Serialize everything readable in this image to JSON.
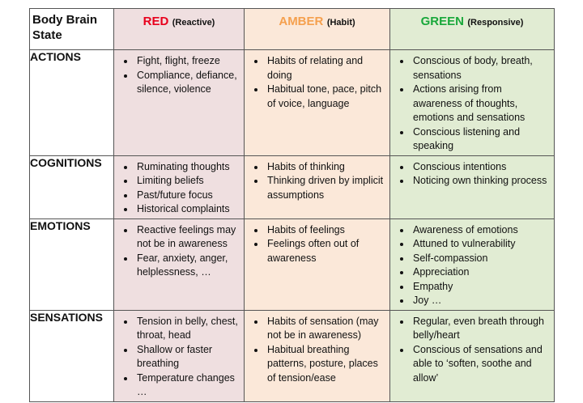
{
  "header": {
    "corner_label": "Body Brain State",
    "columns": [
      {
        "name": "RED",
        "sub": "(Reactive)",
        "color": "#e8001c"
      },
      {
        "name": "AMBER",
        "sub": "(Habit)",
        "color": "#f5a04e"
      },
      {
        "name": "GREEN",
        "sub": "(Responsive)",
        "color": "#19a83b"
      }
    ]
  },
  "rows": [
    {
      "label": "ACTIONS",
      "red": [
        "Fight, flight, freeze",
        "Compliance, defiance, silence, violence"
      ],
      "amber": [
        "Habits of relating and doing",
        "Habitual tone, pace, pitch of voice, language"
      ],
      "green": [
        "Conscious of body, breath, sensations",
        "Actions arising from awareness of thoughts, emotions and sensations",
        "Conscious listening and speaking"
      ]
    },
    {
      "label": "COGNITIONS",
      "red": [
        "Ruminating thoughts",
        "Limiting beliefs",
        "Past/future focus",
        "Historical complaints"
      ],
      "amber": [
        "Habits of thinking",
        "Thinking driven by implicit assumptions"
      ],
      "green": [
        "Conscious intentions",
        "Noticing own thinking process"
      ]
    },
    {
      "label": "EMOTIONS",
      "red": [
        "Reactive feelings may not be in awareness",
        "Fear, anxiety, anger, helplessness, …"
      ],
      "amber": [
        "Habits of feelings",
        "Feelings often out of awareness"
      ],
      "green": [
        "Awareness of emotions",
        "Attuned to vulnerability",
        "Self-compassion",
        "Appreciation",
        "Empathy",
        "Joy …"
      ]
    },
    {
      "label": "SENSATIONS",
      "red": [
        "Tension in belly, chest, throat, head",
        "Shallow or faster breathing",
        "Temperature changes …"
      ],
      "amber": [
        "Habits of sensation (may not be in awareness)",
        "Habitual breathing patterns, posture, places of tension/ease"
      ],
      "green": [
        "Regular, even breath through belly/heart",
        "Conscious of sensations and able to ‘soften, soothe and allow’"
      ]
    }
  ]
}
